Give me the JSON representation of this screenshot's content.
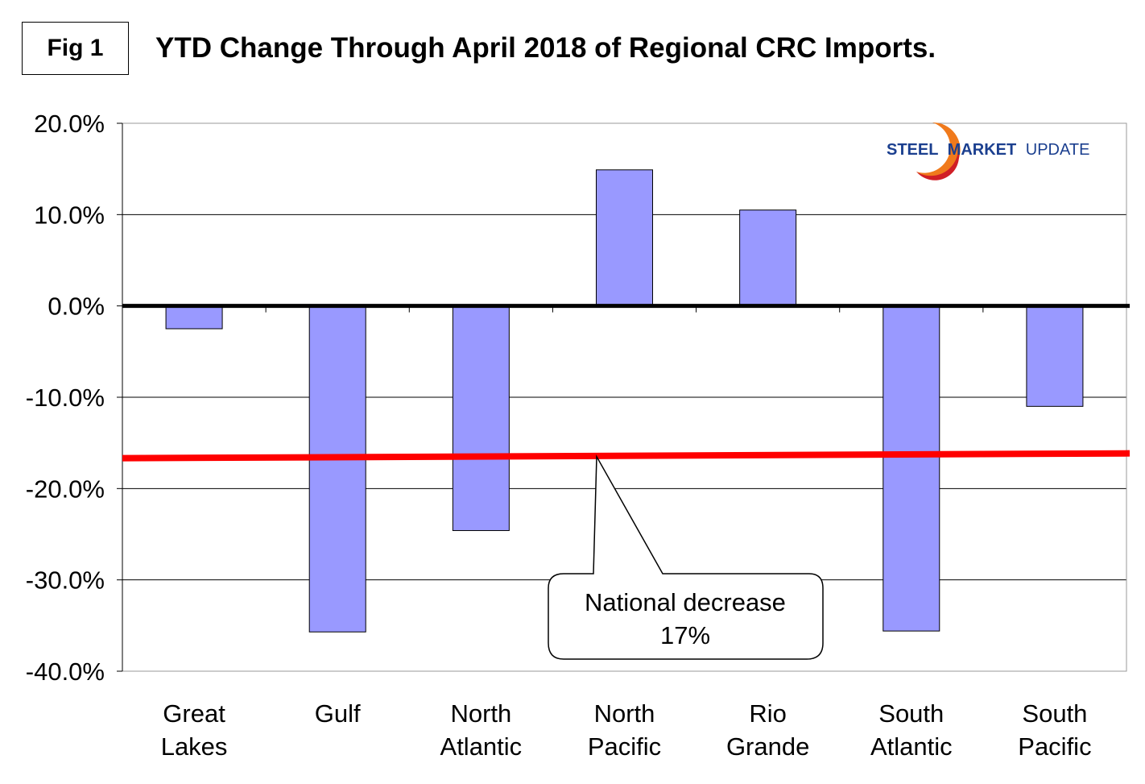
{
  "figure_label": "Fig 1",
  "logo": {
    "steel": "STEEL",
    "market": "MARKET",
    "update": "UPDATE"
  },
  "chart_data": {
    "type": "bar",
    "title": "YTD Change Through April 2018 of Regional CRC Imports.",
    "xlabel": "",
    "ylabel": "",
    "categories": [
      [
        "Great",
        "Lakes"
      ],
      [
        "Gulf"
      ],
      [
        "North",
        "Atlantic"
      ],
      [
        "North",
        "Pacific"
      ],
      [
        "Rio",
        "Grande"
      ],
      [
        "South",
        "Atlantic"
      ],
      [
        "South",
        "Pacific"
      ]
    ],
    "values": [
      -2.5,
      -35.7,
      -24.6,
      14.9,
      10.5,
      -35.6,
      -11.0
    ],
    "ylim": [
      -40,
      20
    ],
    "yticks": [
      20,
      10,
      0,
      -10,
      -20,
      -30,
      -40
    ],
    "ytick_labels": [
      "20.0%",
      "10.0%",
      "0.0%",
      "-10.0%",
      "-20.0%",
      "-30.0%",
      "-40.0%"
    ],
    "grid": true,
    "bar_color": "#9999ff",
    "reference_line": {
      "value": -16.5,
      "color": "#ff0000"
    },
    "annotation": {
      "lines": [
        "National decrease",
        "17%"
      ]
    }
  }
}
